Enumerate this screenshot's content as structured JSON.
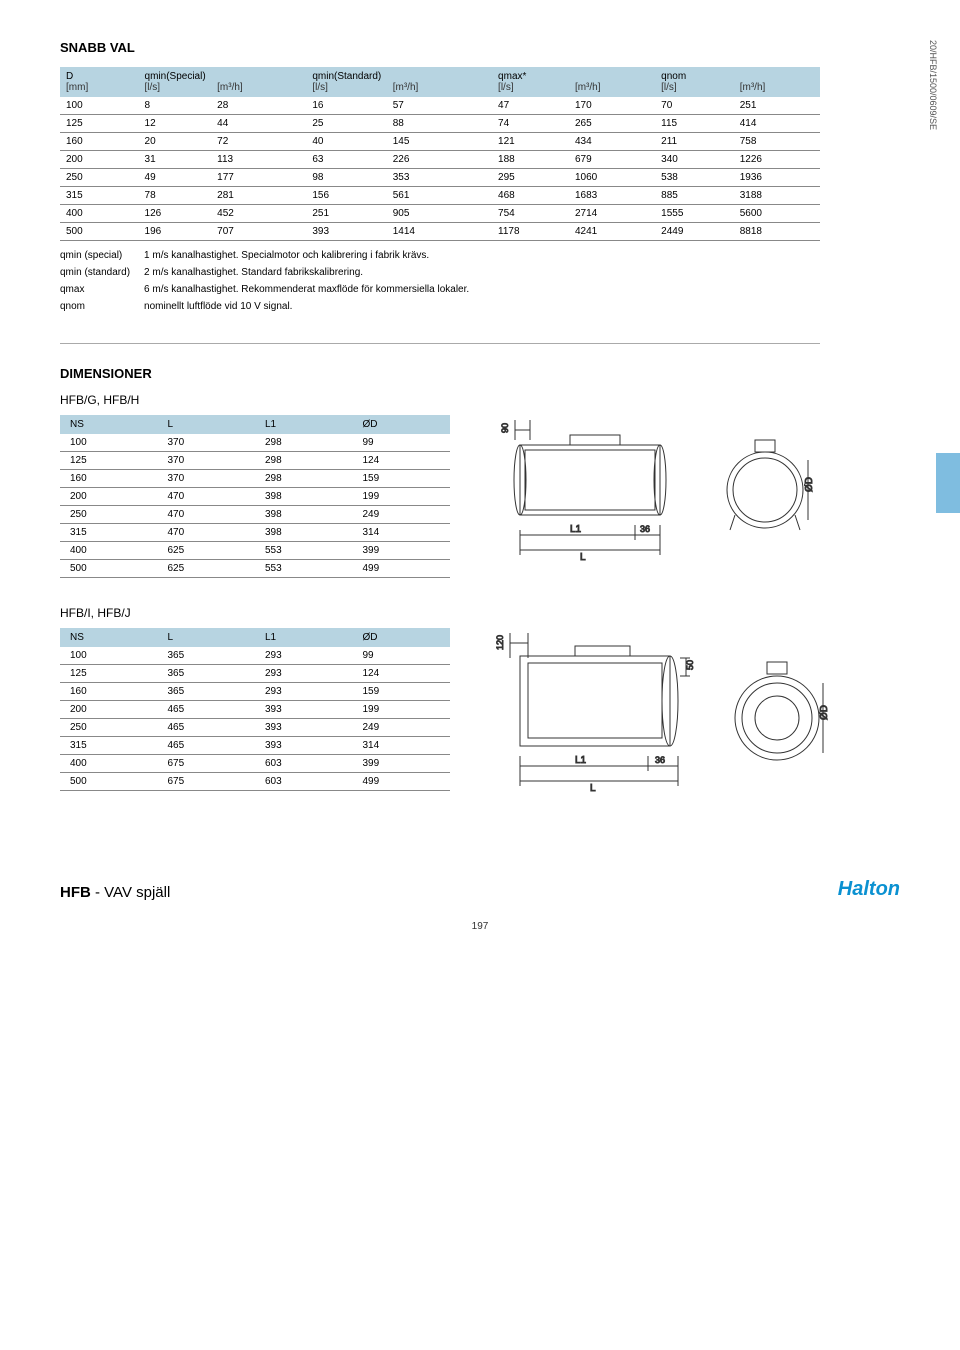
{
  "side_code": "20/HFB/1500/0609/SE",
  "section1_title": "SNABB VAL",
  "main_table": {
    "header_groups": [
      {
        "label": "D",
        "sub": "[mm]"
      },
      {
        "label": "qmin(Special)",
        "sub_l": "[l/s]",
        "sub_r": "[m³/h]"
      },
      {
        "label": "qmin(Standard)",
        "sub_l": "[l/s]",
        "sub_r": "[m³/h]"
      },
      {
        "label": "qmax*",
        "sub_l": "[l/s]",
        "sub_r": "[m³/h]"
      },
      {
        "label": "qnom",
        "sub_l": "[l/s]",
        "sub_r": "[m³/h]"
      }
    ],
    "rows": [
      [
        "100",
        "8",
        "28",
        "16",
        "57",
        "47",
        "170",
        "70",
        "251"
      ],
      [
        "125",
        "12",
        "44",
        "25",
        "88",
        "74",
        "265",
        "115",
        "414"
      ],
      [
        "160",
        "20",
        "72",
        "40",
        "145",
        "121",
        "434",
        "211",
        "758"
      ],
      [
        "200",
        "31",
        "113",
        "63",
        "226",
        "188",
        "679",
        "340",
        "1226"
      ],
      [
        "250",
        "49",
        "177",
        "98",
        "353",
        "295",
        "1060",
        "538",
        "1936"
      ],
      [
        "315",
        "78",
        "281",
        "156",
        "561",
        "468",
        "1683",
        "885",
        "3188"
      ],
      [
        "400",
        "126",
        "452",
        "251",
        "905",
        "754",
        "2714",
        "1555",
        "5600"
      ],
      [
        "500",
        "196",
        "707",
        "393",
        "1414",
        "1178",
        "4241",
        "2449",
        "8818"
      ]
    ]
  },
  "notes": [
    {
      "k": "qmin (special)",
      "v": "1 m/s kanalhastighet. Specialmotor och kalibrering i fabrik krävs."
    },
    {
      "k": "qmin (standard)",
      "v": "2 m/s kanalhastighet. Standard fabrikskalibrering."
    },
    {
      "k": "qmax",
      "v": "6 m/s kanalhastighet. Rekommenderat maxflöde för kommersiella lokaler."
    },
    {
      "k": "qnom",
      "v": "nominellt luftflöde vid 10 V signal."
    }
  ],
  "section2_title": "DIMENSIONER",
  "dim1": {
    "title": "HFB/G, HFB/H",
    "columns": [
      "NS",
      "L",
      "L1",
      "ØD"
    ],
    "rows": [
      [
        "100",
        "370",
        "298",
        "99"
      ],
      [
        "125",
        "370",
        "298",
        "124"
      ],
      [
        "160",
        "370",
        "298",
        "159"
      ],
      [
        "200",
        "470",
        "398",
        "199"
      ],
      [
        "250",
        "470",
        "398",
        "249"
      ],
      [
        "315",
        "470",
        "398",
        "314"
      ],
      [
        "400",
        "625",
        "553",
        "399"
      ],
      [
        "500",
        "625",
        "553",
        "499"
      ]
    ],
    "diagram": {
      "top_dim": "90",
      "l1": "L1",
      "l": "L",
      "right_dim": "36",
      "od": "ØD"
    }
  },
  "dim2": {
    "title": "HFB/I, HFB/J",
    "columns": [
      "NS",
      "L",
      "L1",
      "ØD"
    ],
    "rows": [
      [
        "100",
        "365",
        "293",
        "99"
      ],
      [
        "125",
        "365",
        "293",
        "124"
      ],
      [
        "160",
        "365",
        "293",
        "159"
      ],
      [
        "200",
        "465",
        "393",
        "199"
      ],
      [
        "250",
        "465",
        "393",
        "249"
      ],
      [
        "315",
        "465",
        "393",
        "314"
      ],
      [
        "400",
        "675",
        "603",
        "399"
      ],
      [
        "500",
        "675",
        "603",
        "499"
      ]
    ],
    "diagram": {
      "top_dim": "120",
      "side_dim": "50",
      "l1": "L1",
      "l": "L",
      "right_dim": "36",
      "od": "ØD"
    }
  },
  "footer_product": "HFB",
  "footer_desc": " - VAV spjäll",
  "brand": "Halton",
  "page_num": "197",
  "colors": {
    "header_bg": "#b7d4e1",
    "logo": "#0b91d1",
    "tab": "#7fbde0"
  }
}
